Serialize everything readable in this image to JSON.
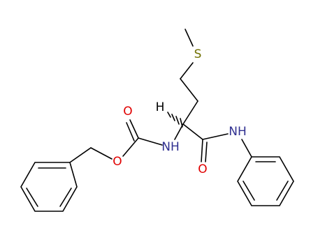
{
  "atoms": [
    {
      "label": "S"
    },
    {
      "label": "H"
    },
    {
      "label": "O"
    },
    {
      "label": "NH"
    },
    {
      "label": "O"
    },
    {
      "label": "NH"
    },
    {
      "label": "O"
    }
  ]
}
